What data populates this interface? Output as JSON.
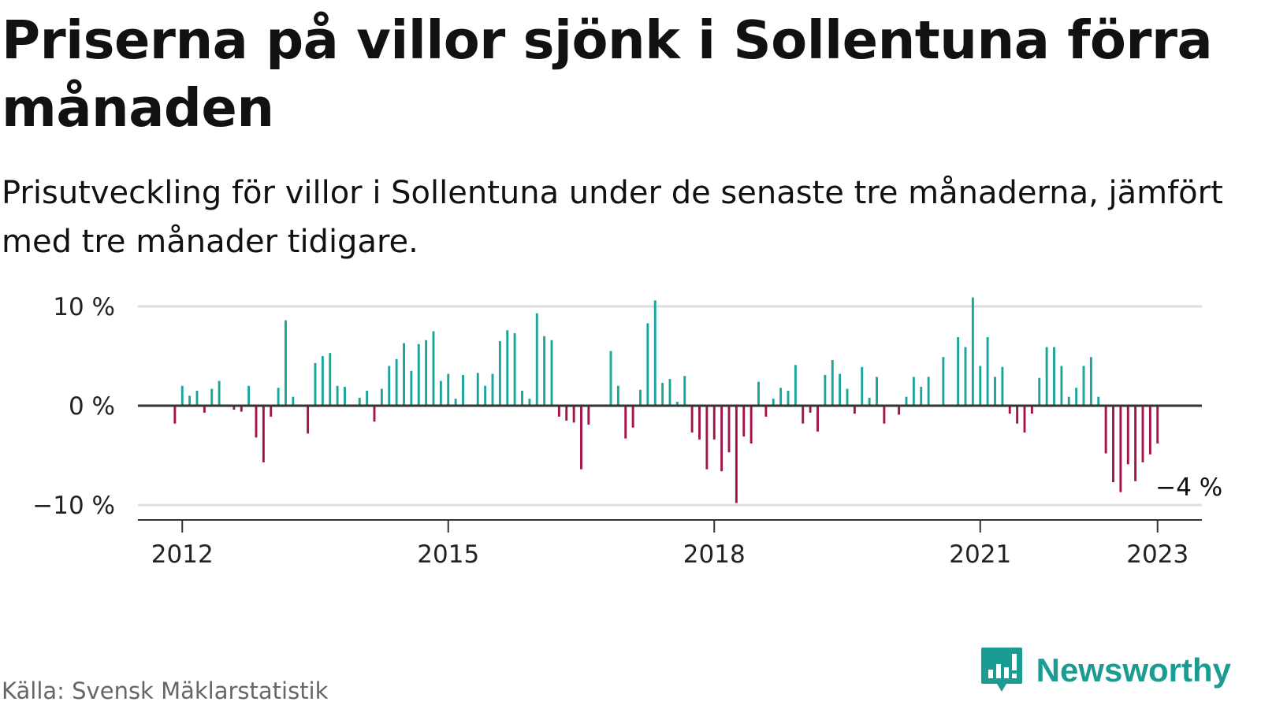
{
  "header": {
    "title": "Priserna på villor sjönk i Sollentuna förra månaden",
    "subtitle": "Prisutveckling för villor i Sollentuna under de senaste tre månaderna, jämfört med tre månader tidigare."
  },
  "footer": {
    "source": "Källa: Svensk Mäklarstatistik",
    "brand": "Newsworthy"
  },
  "colors": {
    "positive": "#1aa59a",
    "negative": "#a3124a",
    "zero_line": "#333333",
    "grid": "#dddddd",
    "brand": "#1a9c92"
  },
  "chart_data": {
    "type": "bar",
    "x_start": "2011-07",
    "x_end": "2023-07",
    "first_period": "2011-12",
    "ylim": [
      -11.5,
      11.5
    ],
    "y_ticks": [
      {
        "value": 10,
        "label": "10 %"
      },
      {
        "value": 0,
        "label": "0 %"
      },
      {
        "value": -10,
        "label": "−10 %"
      }
    ],
    "x_ticks": [
      {
        "date": "2012-01",
        "label": "2012"
      },
      {
        "date": "2015-01",
        "label": "2015"
      },
      {
        "date": "2018-01",
        "label": "2018"
      },
      {
        "date": "2021-01",
        "label": "2021"
      },
      {
        "date": "2023-01",
        "label": "2023"
      }
    ],
    "values": [
      -1.8,
      2,
      1,
      1.5,
      -0.7,
      1.7,
      2.5,
      0,
      -0.4,
      -0.6,
      2,
      -3.2,
      -5.7,
      -1.1,
      1.8,
      8.6,
      0.9,
      0,
      -2.8,
      4.3,
      5,
      5.3,
      2,
      1.9,
      0,
      0.8,
      1.5,
      -1.6,
      1.7,
      4,
      4.7,
      6.3,
      3.5,
      6.2,
      6.6,
      7.5,
      2.5,
      3.2,
      0.7,
      3.1,
      0,
      3.3,
      2,
      3.2,
      6.5,
      7.6,
      7.3,
      1.5,
      0.7,
      9.3,
      7,
      6.6,
      -1.1,
      -1.5,
      -1.7,
      -6.4,
      -1.9,
      0,
      0,
      5.5,
      2,
      -3.3,
      -2.2,
      1.6,
      8.3,
      10.6,
      2.3,
      2.7,
      0.4,
      3,
      -2.7,
      -3.4,
      -6.4,
      -3.4,
      -6.6,
      -4.7,
      -9.8,
      -3.1,
      -3.8,
      2.4,
      -1.1,
      0.7,
      1.8,
      1.5,
      4.1,
      -1.8,
      -0.7,
      -2.6,
      3.1,
      4.6,
      3.2,
      1.7,
      -0.8,
      3.9,
      0.8,
      2.9,
      -1.8,
      0,
      -0.9,
      0.9,
      2.9,
      1.9,
      2.9,
      0,
      4.9,
      0,
      6.9,
      5.9,
      10.9,
      4,
      6.9,
      2.9,
      3.9,
      -0.8,
      -1.8,
      -2.7,
      -0.8,
      2.8,
      5.9,
      5.9,
      4,
      0.9,
      1.8,
      4,
      4.9,
      0.9,
      -4.8,
      -7.7,
      -8.7,
      -5.9,
      -7.6,
      -5.7,
      -4.9,
      -3.8
    ],
    "end_label": "−4 %"
  }
}
